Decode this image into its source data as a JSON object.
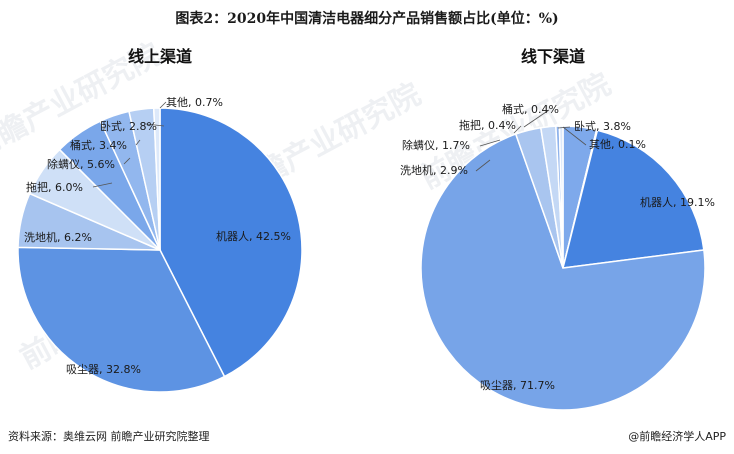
{
  "title": "图表2：2020年中国清洁电器细分产品销售额占比(单位：%)",
  "source": "资料来源：奥维云网 前瞻产业研究院整理",
  "brand": "@前瞻经济学人APP",
  "watermark_text": "前瞻产业研究院",
  "chart_data": [
    {
      "type": "pie",
      "title": "线上渠道",
      "slices": [
        {
          "name": "机器人",
          "value": 42.5,
          "color": "#4583e0"
        },
        {
          "name": "吸尘器",
          "value": 32.8,
          "color": "#5d93e3"
        },
        {
          "name": "洗地机",
          "value": 6.2,
          "color": "#a7c4ef"
        },
        {
          "name": "拖把",
          "value": 6.0,
          "color": "#cfe0f7"
        },
        {
          "name": "除螨仪",
          "value": 5.6,
          "color": "#7aa7ea"
        },
        {
          "name": "桶式",
          "value": 3.4,
          "color": "#92b7ee"
        },
        {
          "name": "卧式",
          "value": 2.8,
          "color": "#b6cff3"
        },
        {
          "name": "其他",
          "value": 0.7,
          "color": "#dde9fa"
        }
      ],
      "labels": [
        "机器人, 42.5%",
        "吸尘器, 32.8%",
        "洗地机, 6.2%",
        "拖把, 6.0%",
        "除螨仪, 5.6%",
        "桶式, 3.4%",
        "卧式, 2.8%",
        "其他, 0.7%"
      ]
    },
    {
      "type": "pie",
      "title": "线下渠道",
      "slices": [
        {
          "name": "卧式",
          "value": 3.8,
          "color": "#7ea9eb"
        },
        {
          "name": "其他",
          "value": 0.1,
          "color": "#6b9be6"
        },
        {
          "name": "机器人",
          "value": 19.1,
          "color": "#4583e0"
        },
        {
          "name": "吸尘器",
          "value": 71.7,
          "color": "#77a4e8"
        },
        {
          "name": "洗地机",
          "value": 2.9,
          "color": "#a9c5ef"
        },
        {
          "name": "除螨仪",
          "value": 1.7,
          "color": "#c4d8f5"
        },
        {
          "name": "拖把",
          "value": 0.4,
          "color": "#8fb3ec"
        },
        {
          "name": "桶式",
          "value": 0.4,
          "color": "#dce8fa"
        }
      ],
      "labels": [
        "卧式, 3.8%",
        "其他, 0.1%",
        "机器人, 19.1%",
        "吸尘器, 71.7%",
        "洗地机, 2.9%",
        "除螨仪, 1.7%",
        "拖把, 0.4%",
        "桶式, 0.4%"
      ]
    }
  ]
}
